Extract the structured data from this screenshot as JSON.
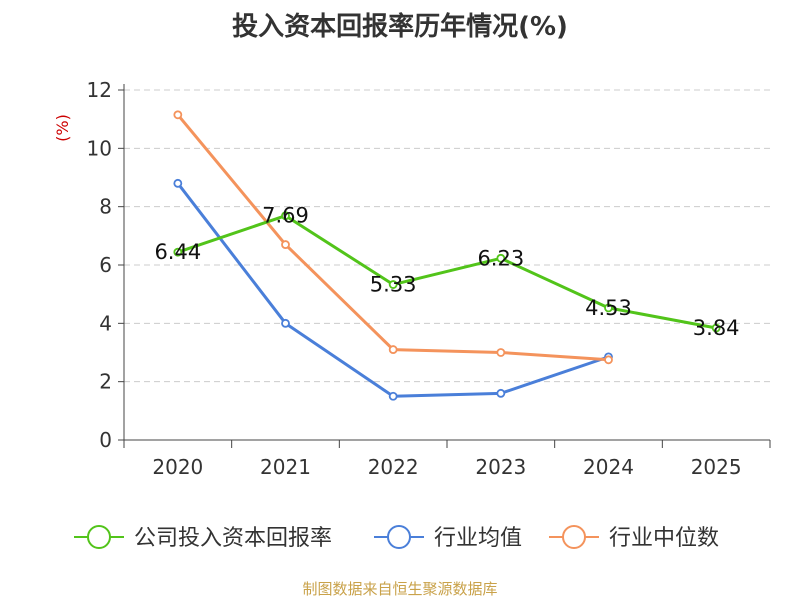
{
  "chart_data": {
    "type": "line",
    "title": "投入资本回报率历年情况(%)",
    "ylabel": "(%)",
    "xlabel": "",
    "categories": [
      "2020",
      "2021",
      "2022",
      "2023",
      "2024",
      "2025"
    ],
    "ylim": [
      0,
      12
    ],
    "yticks": [
      0,
      2,
      4,
      6,
      8,
      10,
      12
    ],
    "grid": true,
    "legend_position": "bottom",
    "series": [
      {
        "name": "公司投入资本回报率",
        "color": "#52c41a",
        "values": [
          6.44,
          7.69,
          5.33,
          6.23,
          4.53,
          3.84
        ],
        "labels": [
          "6.44",
          "7.69",
          "5.33",
          "6.23",
          "4.53",
          "3.84"
        ]
      },
      {
        "name": "行业均值",
        "color": "#4a7fd9",
        "values": [
          8.8,
          4.0,
          1.5,
          1.6,
          2.85,
          null
        ]
      },
      {
        "name": "行业中位数",
        "color": "#f4935c",
        "values": [
          11.15,
          6.7,
          3.1,
          3.0,
          2.75,
          null
        ]
      }
    ]
  },
  "footer": {
    "source": "制图数据来自恒生聚源数据库"
  }
}
